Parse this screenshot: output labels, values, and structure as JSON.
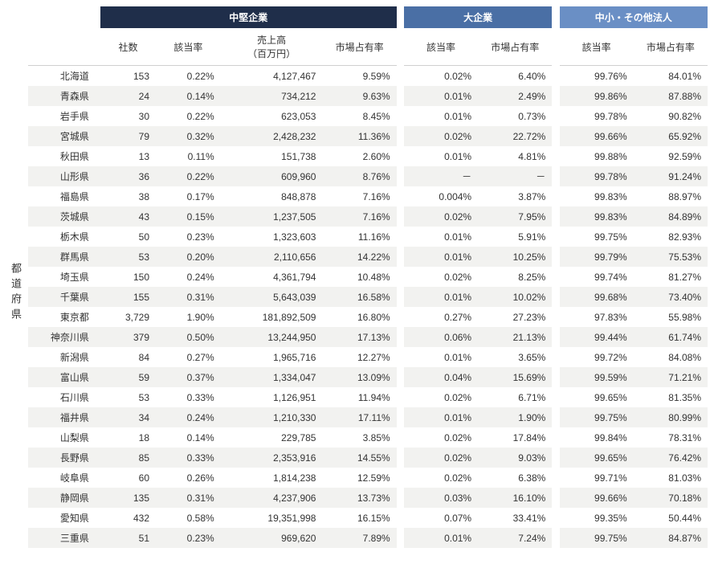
{
  "side_label": "都道府県",
  "groups": [
    {
      "label": "中堅企業",
      "bg": "#1f2e4a"
    },
    {
      "label": "大企業",
      "bg": "#4a6fa5"
    },
    {
      "label": "中小・その他法人",
      "bg": "#6a8fc5"
    }
  ],
  "columns": {
    "c1": "社数",
    "c2": "該当率",
    "c3": "売上高\n（百万円）",
    "c4": "市場占有率",
    "c5": "該当率",
    "c6": "市場占有率",
    "c7": "該当率",
    "c8": "市場占有率"
  },
  "rows": [
    {
      "pref": "北海道",
      "n": "153",
      "r1": "0.22%",
      "rev": "4,127,467",
      "s1": "9.59%",
      "r2": "0.02%",
      "s2": "6.40%",
      "r3": "99.76%",
      "s3": "84.01%"
    },
    {
      "pref": "青森県",
      "n": "24",
      "r1": "0.14%",
      "rev": "734,212",
      "s1": "9.63%",
      "r2": "0.01%",
      "s2": "2.49%",
      "r3": "99.86%",
      "s3": "87.88%"
    },
    {
      "pref": "岩手県",
      "n": "30",
      "r1": "0.22%",
      "rev": "623,053",
      "s1": "8.45%",
      "r2": "0.01%",
      "s2": "0.73%",
      "r3": "99.78%",
      "s3": "90.82%"
    },
    {
      "pref": "宮城県",
      "n": "79",
      "r1": "0.32%",
      "rev": "2,428,232",
      "s1": "11.36%",
      "r2": "0.02%",
      "s2": "22.72%",
      "r3": "99.66%",
      "s3": "65.92%"
    },
    {
      "pref": "秋田県",
      "n": "13",
      "r1": "0.11%",
      "rev": "151,738",
      "s1": "2.60%",
      "r2": "0.01%",
      "s2": "4.81%",
      "r3": "99.88%",
      "s3": "92.59%"
    },
    {
      "pref": "山形県",
      "n": "36",
      "r1": "0.22%",
      "rev": "609,960",
      "s1": "8.76%",
      "r2": "－",
      "s2": "－",
      "r3": "99.78%",
      "s3": "91.24%"
    },
    {
      "pref": "福島県",
      "n": "38",
      "r1": "0.17%",
      "rev": "848,878",
      "s1": "7.16%",
      "r2": "0.004%",
      "s2": "3.87%",
      "r3": "99.83%",
      "s3": "88.97%"
    },
    {
      "pref": "茨城県",
      "n": "43",
      "r1": "0.15%",
      "rev": "1,237,505",
      "s1": "7.16%",
      "r2": "0.02%",
      "s2": "7.95%",
      "r3": "99.83%",
      "s3": "84.89%"
    },
    {
      "pref": "栃木県",
      "n": "50",
      "r1": "0.23%",
      "rev": "1,323,603",
      "s1": "11.16%",
      "r2": "0.01%",
      "s2": "5.91%",
      "r3": "99.75%",
      "s3": "82.93%"
    },
    {
      "pref": "群馬県",
      "n": "53",
      "r1": "0.20%",
      "rev": "2,110,656",
      "s1": "14.22%",
      "r2": "0.01%",
      "s2": "10.25%",
      "r3": "99.79%",
      "s3": "75.53%"
    },
    {
      "pref": "埼玉県",
      "n": "150",
      "r1": "0.24%",
      "rev": "4,361,794",
      "s1": "10.48%",
      "r2": "0.02%",
      "s2": "8.25%",
      "r3": "99.74%",
      "s3": "81.27%"
    },
    {
      "pref": "千葉県",
      "n": "155",
      "r1": "0.31%",
      "rev": "5,643,039",
      "s1": "16.58%",
      "r2": "0.01%",
      "s2": "10.02%",
      "r3": "99.68%",
      "s3": "73.40%"
    },
    {
      "pref": "東京都",
      "n": "3,729",
      "r1": "1.90%",
      "rev": "181,892,509",
      "s1": "16.80%",
      "r2": "0.27%",
      "s2": "27.23%",
      "r3": "97.83%",
      "s3": "55.98%"
    },
    {
      "pref": "神奈川県",
      "n": "379",
      "r1": "0.50%",
      "rev": "13,244,950",
      "s1": "17.13%",
      "r2": "0.06%",
      "s2": "21.13%",
      "r3": "99.44%",
      "s3": "61.74%"
    },
    {
      "pref": "新潟県",
      "n": "84",
      "r1": "0.27%",
      "rev": "1,965,716",
      "s1": "12.27%",
      "r2": "0.01%",
      "s2": "3.65%",
      "r3": "99.72%",
      "s3": "84.08%"
    },
    {
      "pref": "富山県",
      "n": "59",
      "r1": "0.37%",
      "rev": "1,334,047",
      "s1": "13.09%",
      "r2": "0.04%",
      "s2": "15.69%",
      "r3": "99.59%",
      "s3": "71.21%"
    },
    {
      "pref": "石川県",
      "n": "53",
      "r1": "0.33%",
      "rev": "1,126,951",
      "s1": "11.94%",
      "r2": "0.02%",
      "s2": "6.71%",
      "r3": "99.65%",
      "s3": "81.35%"
    },
    {
      "pref": "福井県",
      "n": "34",
      "r1": "0.24%",
      "rev": "1,210,330",
      "s1": "17.11%",
      "r2": "0.01%",
      "s2": "1.90%",
      "r3": "99.75%",
      "s3": "80.99%"
    },
    {
      "pref": "山梨県",
      "n": "18",
      "r1": "0.14%",
      "rev": "229,785",
      "s1": "3.85%",
      "r2": "0.02%",
      "s2": "17.84%",
      "r3": "99.84%",
      "s3": "78.31%"
    },
    {
      "pref": "長野県",
      "n": "85",
      "r1": "0.33%",
      "rev": "2,353,916",
      "s1": "14.55%",
      "r2": "0.02%",
      "s2": "9.03%",
      "r3": "99.65%",
      "s3": "76.42%"
    },
    {
      "pref": "岐阜県",
      "n": "60",
      "r1": "0.26%",
      "rev": "1,814,238",
      "s1": "12.59%",
      "r2": "0.02%",
      "s2": "6.38%",
      "r3": "99.71%",
      "s3": "81.03%"
    },
    {
      "pref": "静岡県",
      "n": "135",
      "r1": "0.31%",
      "rev": "4,237,906",
      "s1": "13.73%",
      "r2": "0.03%",
      "s2": "16.10%",
      "r3": "99.66%",
      "s3": "70.18%"
    },
    {
      "pref": "愛知県",
      "n": "432",
      "r1": "0.58%",
      "rev": "19,351,998",
      "s1": "16.15%",
      "r2": "0.07%",
      "s2": "33.41%",
      "r3": "99.35%",
      "s3": "50.44%"
    },
    {
      "pref": "三重県",
      "n": "51",
      "r1": "0.23%",
      "rev": "969,620",
      "s1": "7.89%",
      "r2": "0.01%",
      "s2": "7.24%",
      "r3": "99.75%",
      "s3": "84.87%"
    }
  ],
  "col_widths": {
    "pref": "78px",
    "n": "60px",
    "r1": "70px",
    "rev": "110px",
    "s1": "80px",
    "r2": "80px",
    "s2": "80px",
    "r3": "80px",
    "s3": "80px"
  },
  "stripe_bg": "#f2f2f0"
}
